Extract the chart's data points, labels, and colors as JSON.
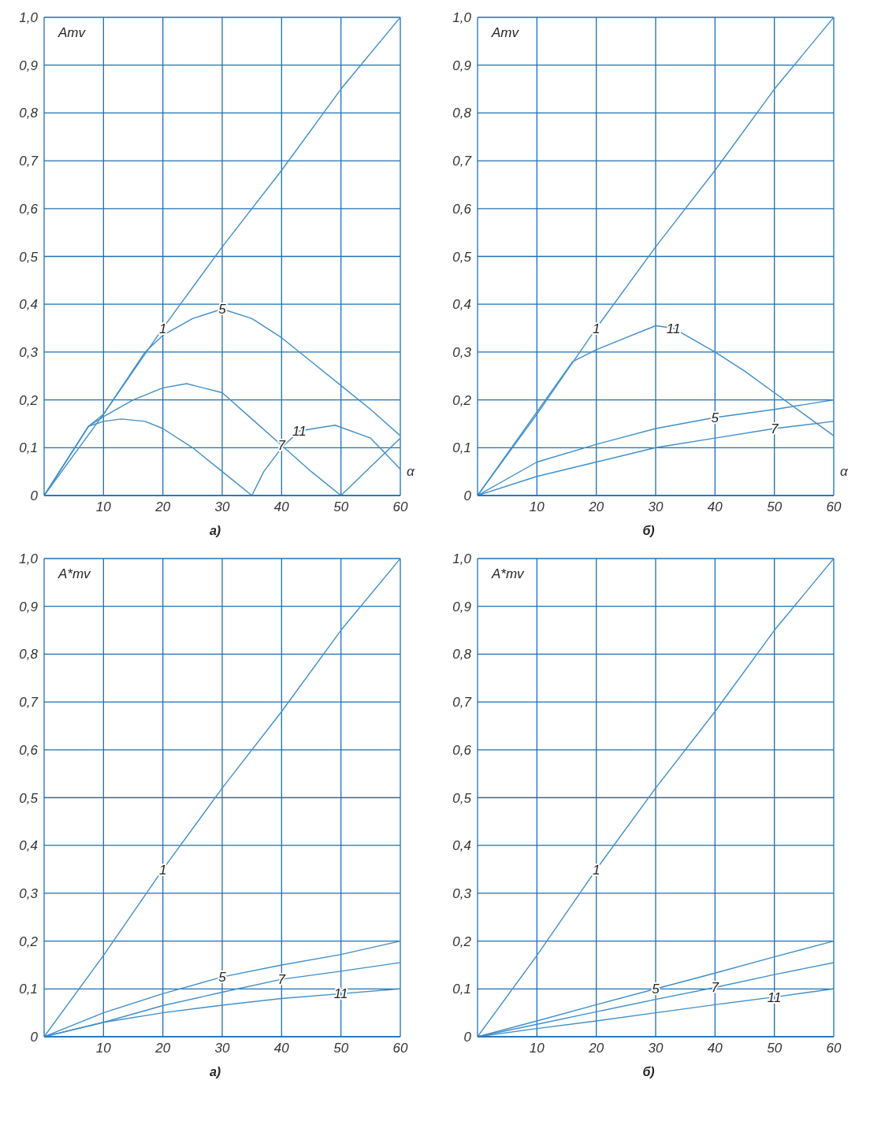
{
  "chart_data": [
    {
      "type": "line",
      "ylabel": "Amv",
      "xlabel": "α",
      "annotations": [
        "а)"
      ],
      "xlim": [
        0,
        60
      ],
      "xticks": [
        10,
        20,
        30,
        40,
        50,
        60
      ],
      "ylim": [
        0,
        1
      ],
      "yticks": [
        {
          "value": 0,
          "label": "0"
        },
        {
          "value": 0.1,
          "label": "0,1"
        },
        {
          "value": 0.2,
          "label": "0,2"
        },
        {
          "value": 0.3,
          "label": "0,3"
        },
        {
          "value": 0.4,
          "label": "0,4"
        },
        {
          "value": 0.5,
          "label": "0,5"
        },
        {
          "value": 0.6,
          "label": "0,6"
        },
        {
          "value": 0.7,
          "label": "0,7"
        },
        {
          "value": 0.8,
          "label": "0,8"
        },
        {
          "value": 0.9,
          "label": "0,9"
        },
        {
          "value": 1,
          "label": "1,0"
        }
      ],
      "grid": true,
      "marker": "none",
      "line_style": "solid",
      "series": [
        {
          "name": "1",
          "color": "#3f8fcc",
          "x": [
            0,
            10,
            20,
            30,
            40,
            50,
            60
          ],
          "values": [
            0,
            0.17,
            0.35,
            0.52,
            0.68,
            0.85,
            1.0
          ]
        },
        {
          "name": "5",
          "color": "#3f8fcc",
          "x": [
            0,
            7.5,
            10,
            17,
            20,
            25,
            30,
            35,
            40,
            45,
            50,
            55,
            60
          ],
          "values": [
            0,
            0.145,
            0.17,
            0.3,
            0.335,
            0.37,
            0.39,
            0.37,
            0.33,
            0.28,
            0.23,
            0.18,
            0.125
          ]
        },
        {
          "name": "7",
          "color": "#3f8fcc",
          "x": [
            0,
            7.5,
            10,
            15,
            20,
            24,
            30,
            35,
            40,
            45,
            50,
            55,
            60
          ],
          "values": [
            0,
            0.145,
            0.165,
            0.2,
            0.225,
            0.234,
            0.215,
            0.16,
            0.105,
            0.05,
            0,
            0.06,
            0.12
          ]
        },
        {
          "name": "11",
          "color": "#3f8fcc",
          "x": [
            0,
            7.5,
            10,
            13,
            17,
            20,
            25,
            30,
            35,
            37,
            40,
            43,
            49,
            55,
            60
          ],
          "values": [
            0,
            0.145,
            0.155,
            0.16,
            0.155,
            0.14,
            0.1,
            0.05,
            0,
            0.05,
            0.1,
            0.135,
            0.147,
            0.12,
            0.055
          ]
        }
      ]
    },
    {
      "type": "line",
      "ylabel": "Amv",
      "xlabel": "α",
      "annotations": [
        "б)"
      ],
      "xlim": [
        0,
        60
      ],
      "xticks": [
        10,
        20,
        30,
        40,
        50,
        60
      ],
      "ylim": [
        0,
        1
      ],
      "yticks": [
        {
          "value": 0,
          "label": "0"
        },
        {
          "value": 0.1,
          "label": "0,1"
        },
        {
          "value": 0.2,
          "label": "0,2"
        },
        {
          "value": 0.3,
          "label": "0,3"
        },
        {
          "value": 0.4,
          "label": "0,4"
        },
        {
          "value": 0.5,
          "label": "0,5"
        },
        {
          "value": 0.6,
          "label": "0,6"
        },
        {
          "value": 0.7,
          "label": "0,7"
        },
        {
          "value": 0.8,
          "label": "0,8"
        },
        {
          "value": 0.9,
          "label": "0,9"
        },
        {
          "value": 1,
          "label": "1,0"
        }
      ],
      "grid": true,
      "marker": "none",
      "line_style": "solid",
      "series": [
        {
          "name": "1",
          "color": "#3f8fcc",
          "x": [
            0,
            10,
            20,
            30,
            40,
            50,
            60
          ],
          "values": [
            0,
            0.17,
            0.35,
            0.52,
            0.68,
            0.85,
            1.0
          ]
        },
        {
          "name": "11",
          "color": "#3f8fcc",
          "x": [
            0,
            16,
            20,
            25,
            30,
            33,
            40,
            45,
            50,
            55,
            60
          ],
          "values": [
            0,
            0.28,
            0.305,
            0.33,
            0.355,
            0.35,
            0.3,
            0.26,
            0.215,
            0.17,
            0.125
          ]
        },
        {
          "name": "5",
          "color": "#3f8fcc",
          "x": [
            0,
            10,
            20,
            30,
            40,
            50,
            60
          ],
          "values": [
            0,
            0.07,
            0.107,
            0.14,
            0.163,
            0.18,
            0.2
          ]
        },
        {
          "name": "7",
          "color": "#3f8fcc",
          "x": [
            0,
            10,
            20,
            30,
            40,
            50,
            60
          ],
          "values": [
            0,
            0.04,
            0.07,
            0.1,
            0.12,
            0.14,
            0.155
          ]
        }
      ]
    },
    {
      "type": "line",
      "ylabel": "A*mv",
      "annotations": [
        "а)"
      ],
      "xlim": [
        0,
        60
      ],
      "xticks": [
        10,
        20,
        30,
        40,
        50,
        60
      ],
      "ylim": [
        0,
        1
      ],
      "yticks": [
        {
          "value": 0,
          "label": "0"
        },
        {
          "value": 0.1,
          "label": "0,1"
        },
        {
          "value": 0.2,
          "label": "0,2"
        },
        {
          "value": 0.3,
          "label": "0,3"
        },
        {
          "value": 0.4,
          "label": "0,4"
        },
        {
          "value": 0.5,
          "label": "0,5"
        },
        {
          "value": 0.6,
          "label": "0,6"
        },
        {
          "value": 0.7,
          "label": "0,7"
        },
        {
          "value": 0.8,
          "label": "0,8"
        },
        {
          "value": 0.9,
          "label": "0,9"
        },
        {
          "value": 1,
          "label": "1,0"
        }
      ],
      "grid": true,
      "marker": "none",
      "line_style": "solid",
      "series": [
        {
          "name": "1",
          "color": "#3f8fcc",
          "x": [
            0,
            10,
            20,
            30,
            40,
            50,
            60
          ],
          "values": [
            0,
            0.17,
            0.35,
            0.52,
            0.68,
            0.85,
            1.0
          ]
        },
        {
          "name": "5",
          "color": "#3f8fcc",
          "x": [
            0,
            10,
            20,
            30,
            40,
            50,
            60
          ],
          "values": [
            0,
            0.05,
            0.09,
            0.125,
            0.15,
            0.172,
            0.2
          ]
        },
        {
          "name": "7",
          "color": "#3f8fcc",
          "x": [
            0,
            10,
            20,
            30,
            40,
            50,
            60
          ],
          "values": [
            0,
            0.03,
            0.065,
            0.093,
            0.12,
            0.137,
            0.155
          ]
        },
        {
          "name": "11",
          "color": "#3f8fcc",
          "x": [
            0,
            10,
            20,
            30,
            40,
            50,
            60
          ],
          "values": [
            0,
            0.03,
            0.05,
            0.066,
            0.08,
            0.09,
            0.1
          ]
        }
      ]
    },
    {
      "type": "line",
      "ylabel": "A*mv",
      "annotations": [
        "б)"
      ],
      "xlim": [
        0,
        60
      ],
      "xticks": [
        10,
        20,
        30,
        40,
        50,
        60
      ],
      "ylim": [
        0,
        1
      ],
      "yticks": [
        {
          "value": 0,
          "label": "0"
        },
        {
          "value": 0.1,
          "label": "0,1"
        },
        {
          "value": 0.2,
          "label": "0,2"
        },
        {
          "value": 0.3,
          "label": "0,3"
        },
        {
          "value": 0.4,
          "label": "0,4"
        },
        {
          "value": 0.5,
          "label": "0,5"
        },
        {
          "value": 0.6,
          "label": "0,6"
        },
        {
          "value": 0.7,
          "label": "0,7"
        },
        {
          "value": 0.8,
          "label": "0,8"
        },
        {
          "value": 0.9,
          "label": "0,9"
        },
        {
          "value": 1,
          "label": "1,0"
        }
      ],
      "grid": true,
      "marker": "none",
      "line_style": "solid",
      "series": [
        {
          "name": "1",
          "color": "#3f8fcc",
          "x": [
            0,
            10,
            20,
            30,
            40,
            50,
            60
          ],
          "values": [
            0,
            0.17,
            0.35,
            0.52,
            0.68,
            0.85,
            1.0
          ]
        },
        {
          "name": "5",
          "color": "#3f8fcc",
          "x": [
            0,
            10,
            20,
            30,
            40,
            50,
            60
          ],
          "values": [
            0,
            0.033,
            0.067,
            0.1,
            0.133,
            0.167,
            0.2
          ]
        },
        {
          "name": "7",
          "color": "#3f8fcc",
          "x": [
            0,
            10,
            20,
            30,
            40,
            50,
            60
          ],
          "values": [
            0,
            0.026,
            0.052,
            0.078,
            0.103,
            0.13,
            0.155
          ]
        },
        {
          "name": "11",
          "color": "#3f8fcc",
          "x": [
            0,
            10,
            20,
            30,
            40,
            50,
            60
          ],
          "values": [
            0,
            0.017,
            0.033,
            0.05,
            0.067,
            0.083,
            0.1
          ]
        }
      ]
    }
  ]
}
